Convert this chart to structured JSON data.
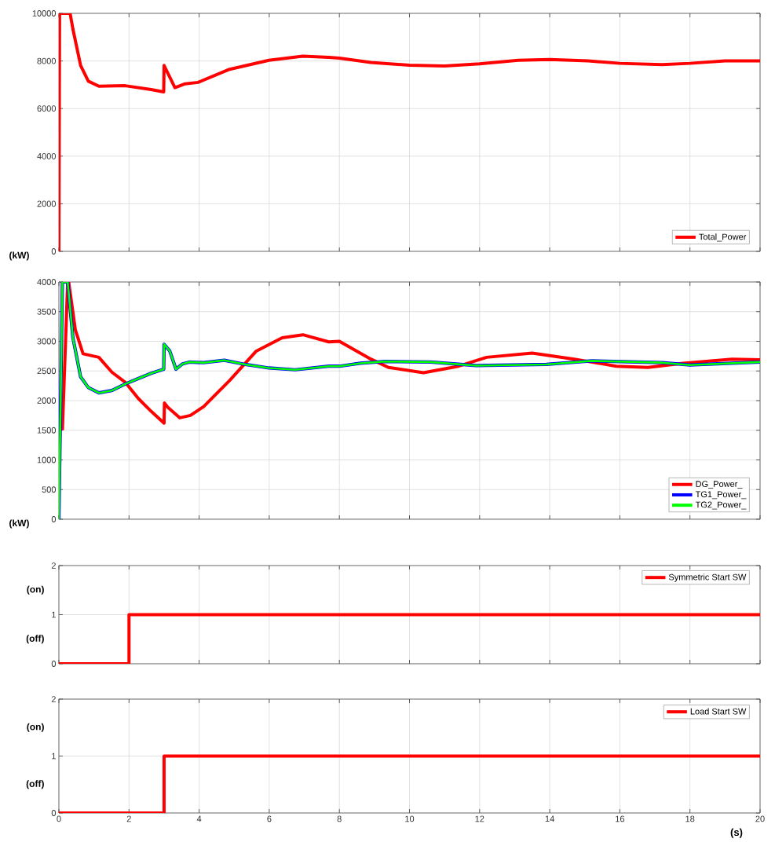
{
  "chart_data": [
    {
      "type": "line",
      "xlim": [
        0,
        20
      ],
      "xticks": [
        0,
        2,
        4,
        6,
        8,
        10,
        12,
        14,
        16,
        18,
        20
      ],
      "ylim": [
        0,
        10000
      ],
      "yticks": [
        0,
        2000,
        4000,
        6000,
        8000,
        10000
      ],
      "ylabel": "(kW)",
      "grid": true,
      "legend": "bottom right",
      "tick_labels": "y",
      "series": [
        {
          "name": "Total_Power",
          "color": "#ff0000",
          "x": [
            0,
            0.02,
            0.32,
            0.4,
            0.62,
            0.84,
            1.14,
            1.89,
            2.63,
            2.99,
            3.0,
            3.31,
            3.6,
            3.97,
            4.87,
            5.99,
            6.96,
            7.7,
            8,
            8.9,
            10,
            11,
            12,
            13.1,
            14,
            15.1,
            16,
            17.2,
            18,
            19,
            20
          ],
          "values": [
            0,
            10000,
            10000,
            9340,
            7810,
            7150,
            6940,
            6960,
            6800,
            6700,
            7810,
            6880,
            7040,
            7100,
            7650,
            8030,
            8200,
            8150,
            8120,
            7940,
            7820,
            7790,
            7880,
            8030,
            8060,
            8000,
            7900,
            7850,
            7900,
            8000,
            8000
          ]
        }
      ]
    },
    {
      "type": "line",
      "xlim": [
        0,
        20
      ],
      "xticks": [
        0,
        2,
        4,
        6,
        8,
        10,
        12,
        14,
        16,
        18,
        20
      ],
      "ylim": [
        0,
        4000
      ],
      "yticks": [
        0,
        500,
        1000,
        1500,
        2000,
        2500,
        3000,
        3500,
        4000
      ],
      "ylabel": "(kW)",
      "grid": true,
      "legend": "bottom right",
      "tick_labels": "y",
      "series": [
        {
          "name": "DG_Power_",
          "color": "#ff0000",
          "x": [
            0.1,
            0.25,
            0.28,
            0.47,
            0.69,
            1.14,
            1.51,
            1.89,
            2.26,
            2.63,
            3.0,
            3.01,
            3.1,
            3.45,
            3.75,
            4.13,
            4.87,
            5.62,
            6.37,
            6.96,
            7.7,
            8,
            8.9,
            9.4,
            10.4,
            11.4,
            12.2,
            13.5,
            14.7,
            15.9,
            16.8,
            17.8,
            19.2,
            20
          ],
          "values": [
            1500,
            4000,
            4000,
            3190,
            2790,
            2730,
            2480,
            2310,
            2040,
            1820,
            1620,
            1960,
            1890,
            1710,
            1750,
            1900,
            2340,
            2830,
            3060,
            3110,
            2990,
            3000,
            2700,
            2560,
            2470,
            2580,
            2730,
            2800,
            2700,
            2580,
            2560,
            2630,
            2700,
            2690
          ]
        },
        {
          "name": "TG1_Power_",
          "color": "#0000ff",
          "x": [
            0,
            0.1,
            0.25,
            0.4,
            0.62,
            0.84,
            1.14,
            1.51,
            1.89,
            2.26,
            2.63,
            2.99,
            3.0,
            3.16,
            3.34,
            3.53,
            3.72,
            4.13,
            4.72,
            5.32,
            5.99,
            6.74,
            7.7,
            8,
            8.6,
            9.3,
            10.6,
            11.9,
            13.9,
            15.2,
            17.2,
            18,
            20
          ],
          "values": [
            0,
            4000,
            4000,
            3060,
            2400,
            2220,
            2130,
            2170,
            2280,
            2370,
            2460,
            2530,
            2950,
            2840,
            2530,
            2620,
            2650,
            2640,
            2680,
            2610,
            2550,
            2520,
            2580,
            2580,
            2630,
            2660,
            2650,
            2590,
            2610,
            2670,
            2640,
            2600,
            2650
          ]
        },
        {
          "name": "TG2_Power_",
          "color": "#00ff00",
          "x": [
            0,
            0.1,
            0.25,
            0.4,
            0.62,
            0.84,
            1.14,
            1.51,
            1.89,
            2.26,
            2.63,
            2.99,
            3.0,
            3.16,
            3.34,
            3.53,
            3.72,
            4.13,
            4.72,
            5.32,
            5.99,
            6.74,
            7.7,
            8,
            8.6,
            9.3,
            10.6,
            11.9,
            13.9,
            15.2,
            17.2,
            18,
            20
          ],
          "values": [
            0,
            4000,
            4000,
            3060,
            2400,
            2220,
            2130,
            2170,
            2280,
            2370,
            2460,
            2530,
            2950,
            2840,
            2530,
            2620,
            2650,
            2640,
            2680,
            2610,
            2550,
            2520,
            2580,
            2580,
            2630,
            2660,
            2650,
            2590,
            2610,
            2670,
            2640,
            2600,
            2650
          ]
        }
      ]
    },
    {
      "type": "step",
      "xlim": [
        0,
        20
      ],
      "xticks": [
        0,
        2,
        4,
        6,
        8,
        10,
        12,
        14,
        16,
        18,
        20
      ],
      "ylim": [
        0,
        2
      ],
      "yticks": [
        0,
        1,
        2
      ],
      "annotations": [
        "(on)",
        "(off)"
      ],
      "grid": true,
      "legend": "top right",
      "tick_labels": "y",
      "series": [
        {
          "name": "Symmetric Start SW",
          "color": "#ff0000",
          "x": [
            0,
            2,
            20
          ],
          "values": [
            0,
            1,
            1
          ]
        }
      ]
    },
    {
      "type": "step",
      "xlim": [
        0,
        20
      ],
      "xticks": [
        0,
        2,
        4,
        6,
        8,
        10,
        12,
        14,
        16,
        18,
        20
      ],
      "ylim": [
        0,
        2
      ],
      "yticks": [
        0,
        1,
        2
      ],
      "annotations": [
        "(on)",
        "(off)"
      ],
      "xlabel": "(s)",
      "grid": true,
      "legend": "top right",
      "series": [
        {
          "name": "Load Start SW",
          "color": "#ff0000",
          "x": [
            0,
            3,
            20
          ],
          "values": [
            0,
            1,
            1
          ]
        }
      ]
    }
  ]
}
